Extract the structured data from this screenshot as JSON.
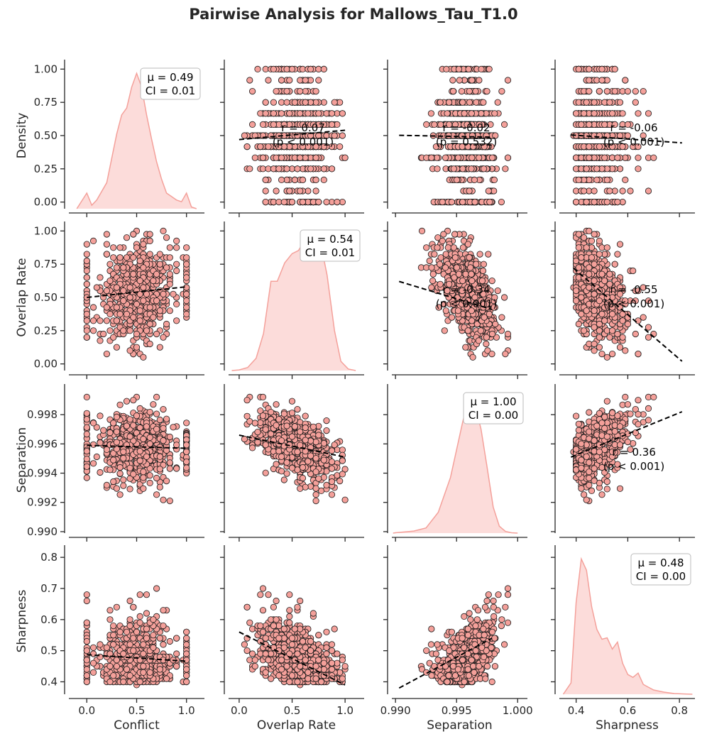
{
  "chart_data": {
    "type": "pairplot",
    "title": "Pairwise Analysis for Mallows_Tau_T1.0",
    "n_points": 700,
    "colors": {
      "point_fill": "#f4a09a",
      "point_edge": "#1a1a1a",
      "kde_fill": "#fcdcda",
      "kde_line": "#f4a09a",
      "trend": "#000000",
      "axis": "#262626"
    },
    "variables": [
      {
        "name": "Density",
        "label": "Density",
        "range": [
          -0.05,
          1.05
        ],
        "ticks": [
          0.0,
          0.25,
          0.5,
          0.75,
          1.0
        ],
        "tick_labels": [
          "0.00",
          "0.25",
          "0.50",
          "0.75",
          "1.00"
        ]
      },
      {
        "name": "Overlap Rate",
        "label": "Overlap Rate",
        "range": [
          -0.05,
          1.05
        ],
        "ticks": [
          0.0,
          0.25,
          0.5,
          0.75,
          1.0
        ],
        "tick_labels": [
          "0.00",
          "0.25",
          "0.50",
          "0.75",
          "1.00"
        ]
      },
      {
        "name": "Separation",
        "label": "Separation",
        "range": [
          0.9899,
          0.9999
        ],
        "ticks": [
          0.99,
          0.992,
          0.994,
          0.996,
          0.998
        ],
        "tick_labels": [
          "0.990",
          "0.992",
          "0.994",
          "0.996",
          "0.998"
        ]
      },
      {
        "name": "Sharpness",
        "label": "Sharpness",
        "range": [
          0.36,
          0.83
        ],
        "ticks": [
          0.4,
          0.5,
          0.6,
          0.7,
          0.8
        ],
        "tick_labels": [
          "0.4",
          "0.5",
          "0.6",
          "0.7",
          "0.8"
        ]
      }
    ],
    "x_axes": [
      {
        "label": "Conflict",
        "range": [
          -0.18,
          1.18
        ],
        "ticks": [
          0.0,
          0.5,
          1.0
        ],
        "tick_labels": [
          "0.0",
          "0.5",
          "1.0"
        ]
      },
      {
        "label": "Overlap Rate",
        "range": [
          -0.1,
          1.18
        ],
        "ticks": [
          0.0,
          0.5,
          1.0
        ],
        "tick_labels": [
          "0.0",
          "0.5",
          "1.0"
        ]
      },
      {
        "label": "Separation",
        "range": [
          0.9897,
          1.0008
        ],
        "ticks": [
          0.99,
          0.995,
          1.0
        ],
        "tick_labels": [
          "0.990",
          "0.995",
          "1.000"
        ]
      },
      {
        "label": "Sharpness",
        "range": [
          0.335,
          0.86
        ],
        "ticks": [
          0.4,
          0.6,
          0.8
        ],
        "tick_labels": [
          "0.4",
          "0.6",
          "0.8"
        ]
      }
    ],
    "diagonal": [
      {
        "mu_text": "μ = 0.49",
        "ci_text": "CI = 0.01",
        "kde_x": [
          -0.1,
          0.0,
          0.05,
          0.1,
          0.2,
          0.3,
          0.35,
          0.4,
          0.45,
          0.5,
          0.55,
          0.6,
          0.65,
          0.7,
          0.75,
          0.8,
          0.85,
          0.9,
          0.95,
          1.0,
          1.05,
          1.1
        ],
        "kde_y": [
          0.0,
          0.9,
          0.2,
          0.5,
          1.5,
          4.3,
          5.4,
          5.8,
          7.0,
          7.8,
          7.0,
          5.4,
          4.0,
          2.7,
          1.7,
          0.9,
          0.7,
          0.5,
          0.4,
          0.9,
          0.1,
          0.0
        ]
      },
      {
        "mu_text": "μ = 0.54",
        "ci_text": "CI = 0.01",
        "kde_x": [
          -0.07,
          0.0,
          0.08,
          0.16,
          0.23,
          0.3,
          0.36,
          0.43,
          0.5,
          0.56,
          0.63,
          0.7,
          0.76,
          0.83,
          0.9,
          0.96,
          1.03,
          1.1
        ],
        "kde_y": [
          0.0,
          0.02,
          0.1,
          0.4,
          1.2,
          2.9,
          2.9,
          3.5,
          3.8,
          3.9,
          4.3,
          4.4,
          4.3,
          3.1,
          1.3,
          0.3,
          0.05,
          0.0
        ]
      },
      {
        "mu_text": "μ = 1.00",
        "ci_text": "CI = 0.00",
        "kde_x": [
          0.9898,
          0.99,
          0.9915,
          0.9925,
          0.9935,
          0.9945,
          0.9955,
          0.996,
          0.9965,
          0.997,
          0.9975,
          0.998,
          0.9985,
          0.999,
          0.9995,
          1.0
        ],
        "kde_y": [
          0.0,
          0.01,
          0.06,
          0.15,
          0.6,
          1.6,
          3.2,
          3.9,
          3.7,
          3.0,
          1.9,
          0.75,
          0.2,
          0.05,
          0.01,
          0.0
        ]
      },
      {
        "mu_text": "μ = 0.48",
        "ci_text": "CI = 0.00",
        "kde_x": [
          0.35,
          0.38,
          0.4,
          0.42,
          0.44,
          0.46,
          0.48,
          0.5,
          0.52,
          0.54,
          0.56,
          0.58,
          0.6,
          0.62,
          0.64,
          0.66,
          0.68,
          0.7,
          0.74,
          0.78,
          0.82,
          0.85
        ],
        "kde_y": [
          0.0,
          0.8,
          6.5,
          9.6,
          8.8,
          6.2,
          4.6,
          3.9,
          4.0,
          3.2,
          3.7,
          2.2,
          1.4,
          1.2,
          1.5,
          0.7,
          0.5,
          0.3,
          0.15,
          0.05,
          0.02,
          0.0
        ]
      }
    ],
    "correlations": [
      {
        "row": 0,
        "col": 1,
        "lines": [
          "r = 0.07",
          "(p < 0.001)"
        ],
        "fit": [
          0.0,
          0.47,
          1.0,
          0.54
        ]
      },
      {
        "row": 0,
        "col": 2,
        "lines": [
          "r = -0.02",
          "(p = 0.532)"
        ],
        "fit": [
          0.9903,
          0.502,
          0.9979,
          0.488
        ]
      },
      {
        "row": 0,
        "col": 3,
        "lines": [
          "r = -0.06",
          "(p < 0.001)"
        ],
        "fit": [
          0.38,
          0.505,
          0.81,
          0.445
        ]
      },
      {
        "row": 1,
        "col": 0,
        "lines": [],
        "fit": [
          0.0,
          0.5,
          1.0,
          0.58
        ]
      },
      {
        "row": 1,
        "col": 2,
        "lines": [
          "r = -0.34",
          "(p < 0.001)"
        ],
        "fit": [
          0.9903,
          0.62,
          0.9979,
          0.41
        ]
      },
      {
        "row": 1,
        "col": 3,
        "lines": [
          "r = -0.55",
          "(p < 0.001)"
        ],
        "fit": [
          0.39,
          0.72,
          0.81,
          0.02
        ]
      },
      {
        "row": 2,
        "col": 0,
        "lines": [],
        "fit": [
          0.0,
          0.9959,
          1.0,
          0.9957
        ]
      },
      {
        "row": 2,
        "col": 1,
        "lines": [],
        "fit": [
          0.0,
          0.9966,
          1.0,
          0.9951
        ]
      },
      {
        "row": 2,
        "col": 3,
        "lines": [
          "r = 0.36",
          "(p < 0.001)"
        ],
        "fit": [
          0.38,
          0.9951,
          0.81,
          0.9982
        ]
      },
      {
        "row": 3,
        "col": 0,
        "lines": [],
        "fit": [
          0.0,
          0.487,
          1.0,
          0.466
        ]
      },
      {
        "row": 3,
        "col": 1,
        "lines": [],
        "fit": [
          0.0,
          0.56,
          1.0,
          0.39
        ]
      },
      {
        "row": 3,
        "col": 2,
        "lines": [],
        "fit": [
          0.9903,
          0.38,
          0.9979,
          0.54
        ]
      }
    ]
  }
}
